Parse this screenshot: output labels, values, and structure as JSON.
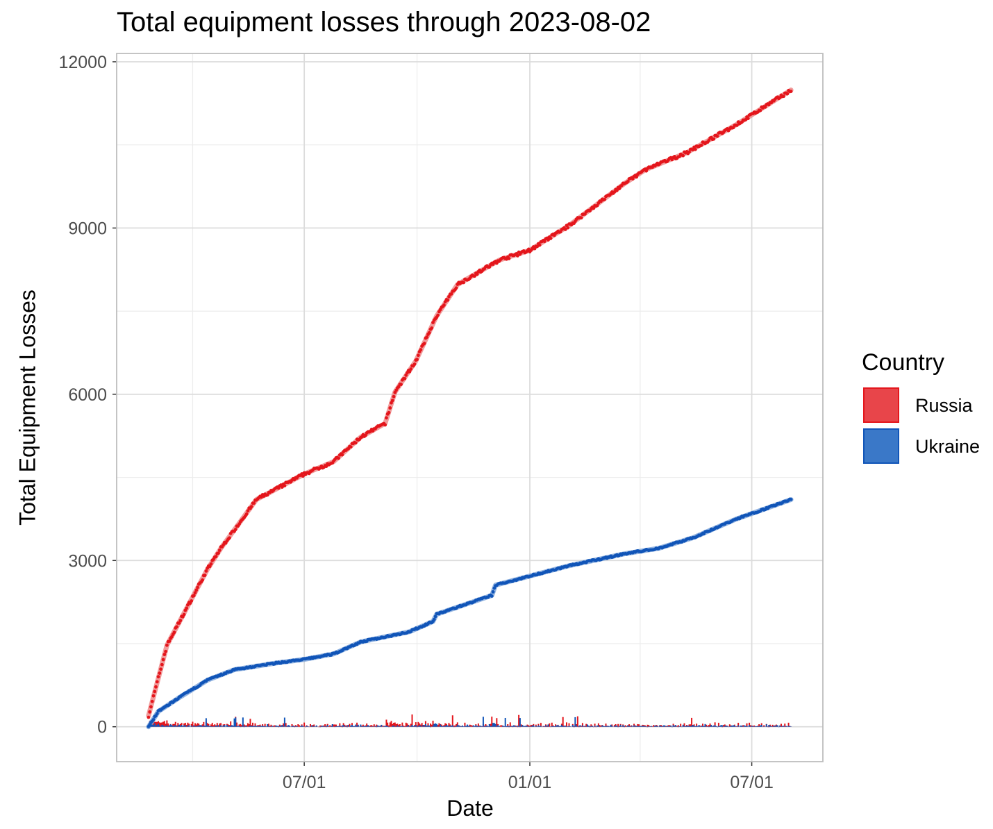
{
  "chart_data": {
    "type": "line",
    "title": "Total equipment losses through 2023-08-02",
    "xlabel": "Date",
    "ylabel": "Total Equipment Losses",
    "xlim": [
      "2022-01-29",
      "2023-08-28"
    ],
    "ylim": [
      -630,
      12150
    ],
    "yticks": [
      0,
      3000,
      6000,
      9000,
      12000
    ],
    "ytick_labels": [
      "0",
      "3000",
      "6000",
      "9000",
      "12000"
    ],
    "xticks": [
      "2022-07-01",
      "2023-01-01",
      "2023-07-01"
    ],
    "xtick_labels": [
      "07/01",
      "01/01",
      "07/01"
    ],
    "x_minor": [
      "2022-04-01",
      "2022-10-01",
      "2023-04-01"
    ],
    "grid": true,
    "legend": {
      "title": "Country",
      "position": "right",
      "entries": [
        "Russia",
        "Ukraine"
      ]
    },
    "series": [
      {
        "name": "Russia",
        "color": "#e4161c",
        "fill": "#e8454a",
        "smooth_color": "#ee8a8a",
        "points": [
          [
            "2022-02-24",
            200
          ],
          [
            "2022-03-11",
            1470
          ],
          [
            "2022-04-13",
            2840
          ],
          [
            "2022-04-24",
            3220
          ],
          [
            "2022-05-23",
            4100
          ],
          [
            "2022-07-01",
            4560
          ],
          [
            "2022-07-25",
            4785
          ],
          [
            "2022-08-16",
            5225
          ],
          [
            "2022-09-05",
            5475
          ],
          [
            "2022-09-13",
            6040
          ],
          [
            "2022-09-30",
            6600
          ],
          [
            "2022-10-17",
            7415
          ],
          [
            "2022-11-03",
            7980
          ],
          [
            "2022-12-07",
            8420
          ],
          [
            "2023-01-01",
            8600
          ],
          [
            "2023-02-02",
            9045
          ],
          [
            "2023-03-19",
            9800
          ],
          [
            "2023-04-05",
            10050
          ],
          [
            "2023-05-09",
            10360
          ],
          [
            "2023-06-18",
            10860
          ],
          [
            "2023-08-02",
            11490
          ]
        ]
      },
      {
        "name": "Ukraine",
        "color": "#1155b8",
        "fill": "#3a78c8",
        "smooth_color": "#7fa6da",
        "points": [
          [
            "2022-02-24",
            0
          ],
          [
            "2022-03-04",
            275
          ],
          [
            "2022-03-21",
            526
          ],
          [
            "2022-04-13",
            840
          ],
          [
            "2022-05-05",
            1030
          ],
          [
            "2022-06-08",
            1150
          ],
          [
            "2022-07-01",
            1215
          ],
          [
            "2022-07-25",
            1315
          ],
          [
            "2022-08-16",
            1530
          ],
          [
            "2022-09-25",
            1716
          ],
          [
            "2022-10-14",
            1900
          ],
          [
            "2022-10-17",
            2030
          ],
          [
            "2022-12-01",
            2370
          ],
          [
            "2022-12-04",
            2555
          ],
          [
            "2023-01-01",
            2720
          ],
          [
            "2023-02-02",
            2906
          ],
          [
            "2023-03-19",
            3120
          ],
          [
            "2023-04-16",
            3220
          ],
          [
            "2023-05-14",
            3410
          ],
          [
            "2023-06-18",
            3745
          ],
          [
            "2023-08-02",
            4100
          ]
        ]
      }
    ]
  }
}
